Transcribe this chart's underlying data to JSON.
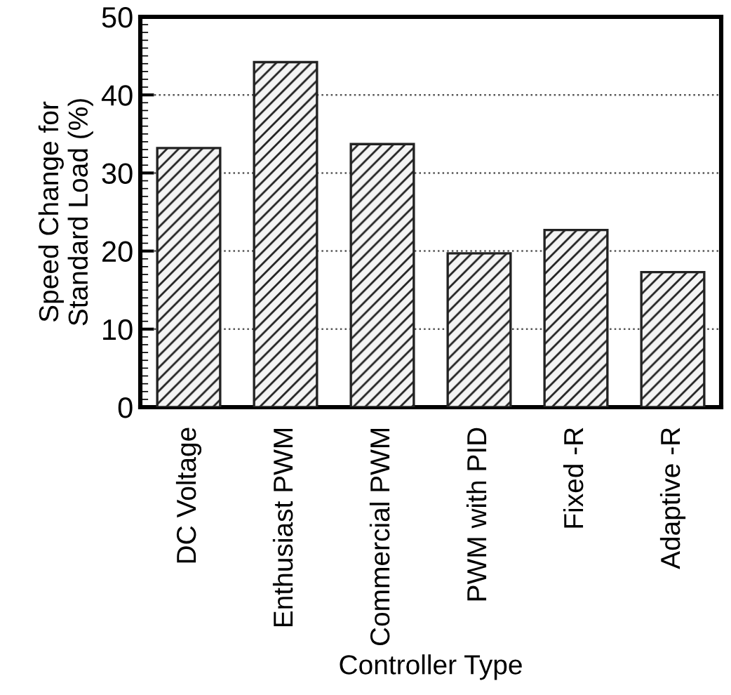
{
  "chart_data": {
    "type": "bar",
    "xlabel": "Controller Type",
    "ylabel": "Speed Change for\nStandard Load (%)",
    "categories": [
      "DC Voltage",
      "Enthusiast PWM",
      "Commercial PWM",
      "PWM with PID",
      "Fixed -R",
      "Adaptive -R"
    ],
    "values": [
      33.2,
      44.2,
      33.7,
      19.7,
      22.7,
      17.3
    ],
    "color": "#222222",
    "ylim": [
      0,
      50
    ],
    "yticks": [
      0,
      10,
      20,
      30,
      40,
      50
    ],
    "grid": "y"
  }
}
